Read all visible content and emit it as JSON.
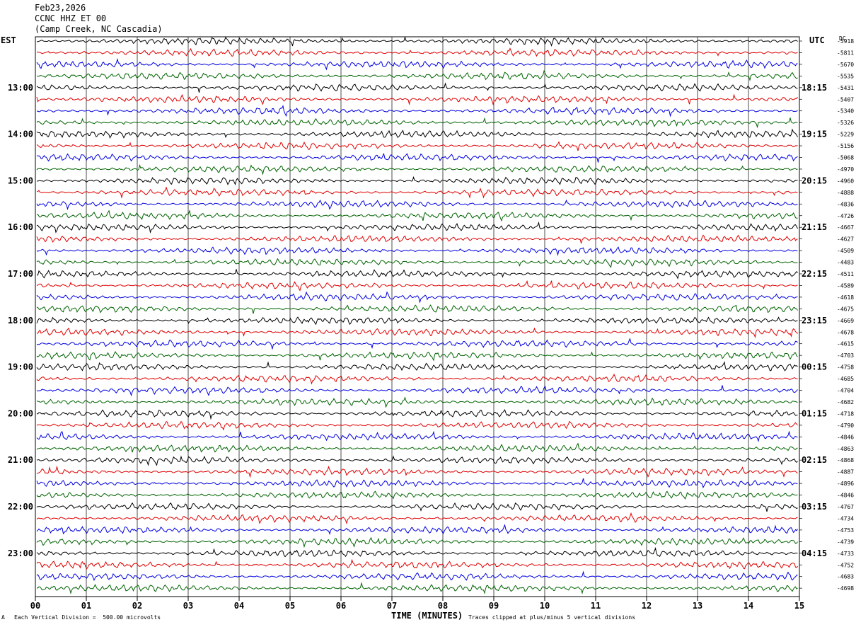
{
  "header": {
    "date": "Feb23,2026",
    "station": "CCNC HHZ ET 00",
    "location": "(Camp Creek, NC Cascadia)"
  },
  "left_label": "EST",
  "right_label": "UTC",
  "dc_label": "DC",
  "footer": {
    "scale_glyph": "A",
    "scale_text": "Each Vertical Division =  500.00 microvolts",
    "xlabel": "TIME (MINUTES)",
    "clip_note": "Traces clipped at plus/minus 5 vertical divisions"
  },
  "chart_data": {
    "type": "line",
    "title": "Feb23,2026 CCNC HHZ ET 00 (Camp Creek, NC Cascadia)",
    "xlabel": "TIME (MINUTES)",
    "xlim": [
      0,
      15
    ],
    "x_ticks": [
      "00",
      "01",
      "02",
      "03",
      "04",
      "05",
      "06",
      "07",
      "08",
      "09",
      "10",
      "11",
      "12",
      "13",
      "14",
      "15"
    ],
    "grid": true,
    "trace_colors": [
      "#000000",
      "#e00000",
      "#0000e0",
      "#006400"
    ],
    "est_hour_labels": [
      "13:00",
      "14:00",
      "15:00",
      "16:00",
      "17:00",
      "18:00",
      "19:00",
      "20:00",
      "21:00",
      "22:00",
      "23:00"
    ],
    "utc_hour_labels": [
      "18:15",
      "19:15",
      "20:15",
      "21:15",
      "22:15",
      "23:15",
      "00:15",
      "01:15",
      "02:15",
      "03:15",
      "04:15"
    ],
    "dc_offsets": [
      -5918,
      -5811,
      -5670,
      -5535,
      -5431,
      -5407,
      -5340,
      -5326,
      -5229,
      -5156,
      -5068,
      -4970,
      -4960,
      -4888,
      -4836,
      -4726,
      -4667,
      -4627,
      -4509,
      -4483,
      -4511,
      -4589,
      -4618,
      -4675,
      -4669,
      -4678,
      -4615,
      -4703,
      -4758,
      -4685,
      -4704,
      -4682,
      -4718,
      -4790,
      -4846,
      -4863,
      -4868,
      -4887,
      -4896,
      -4846,
      -4767,
      -4734,
      -4753,
      -4739,
      -4733,
      -4752,
      -4683,
      -4698
    ]
  }
}
